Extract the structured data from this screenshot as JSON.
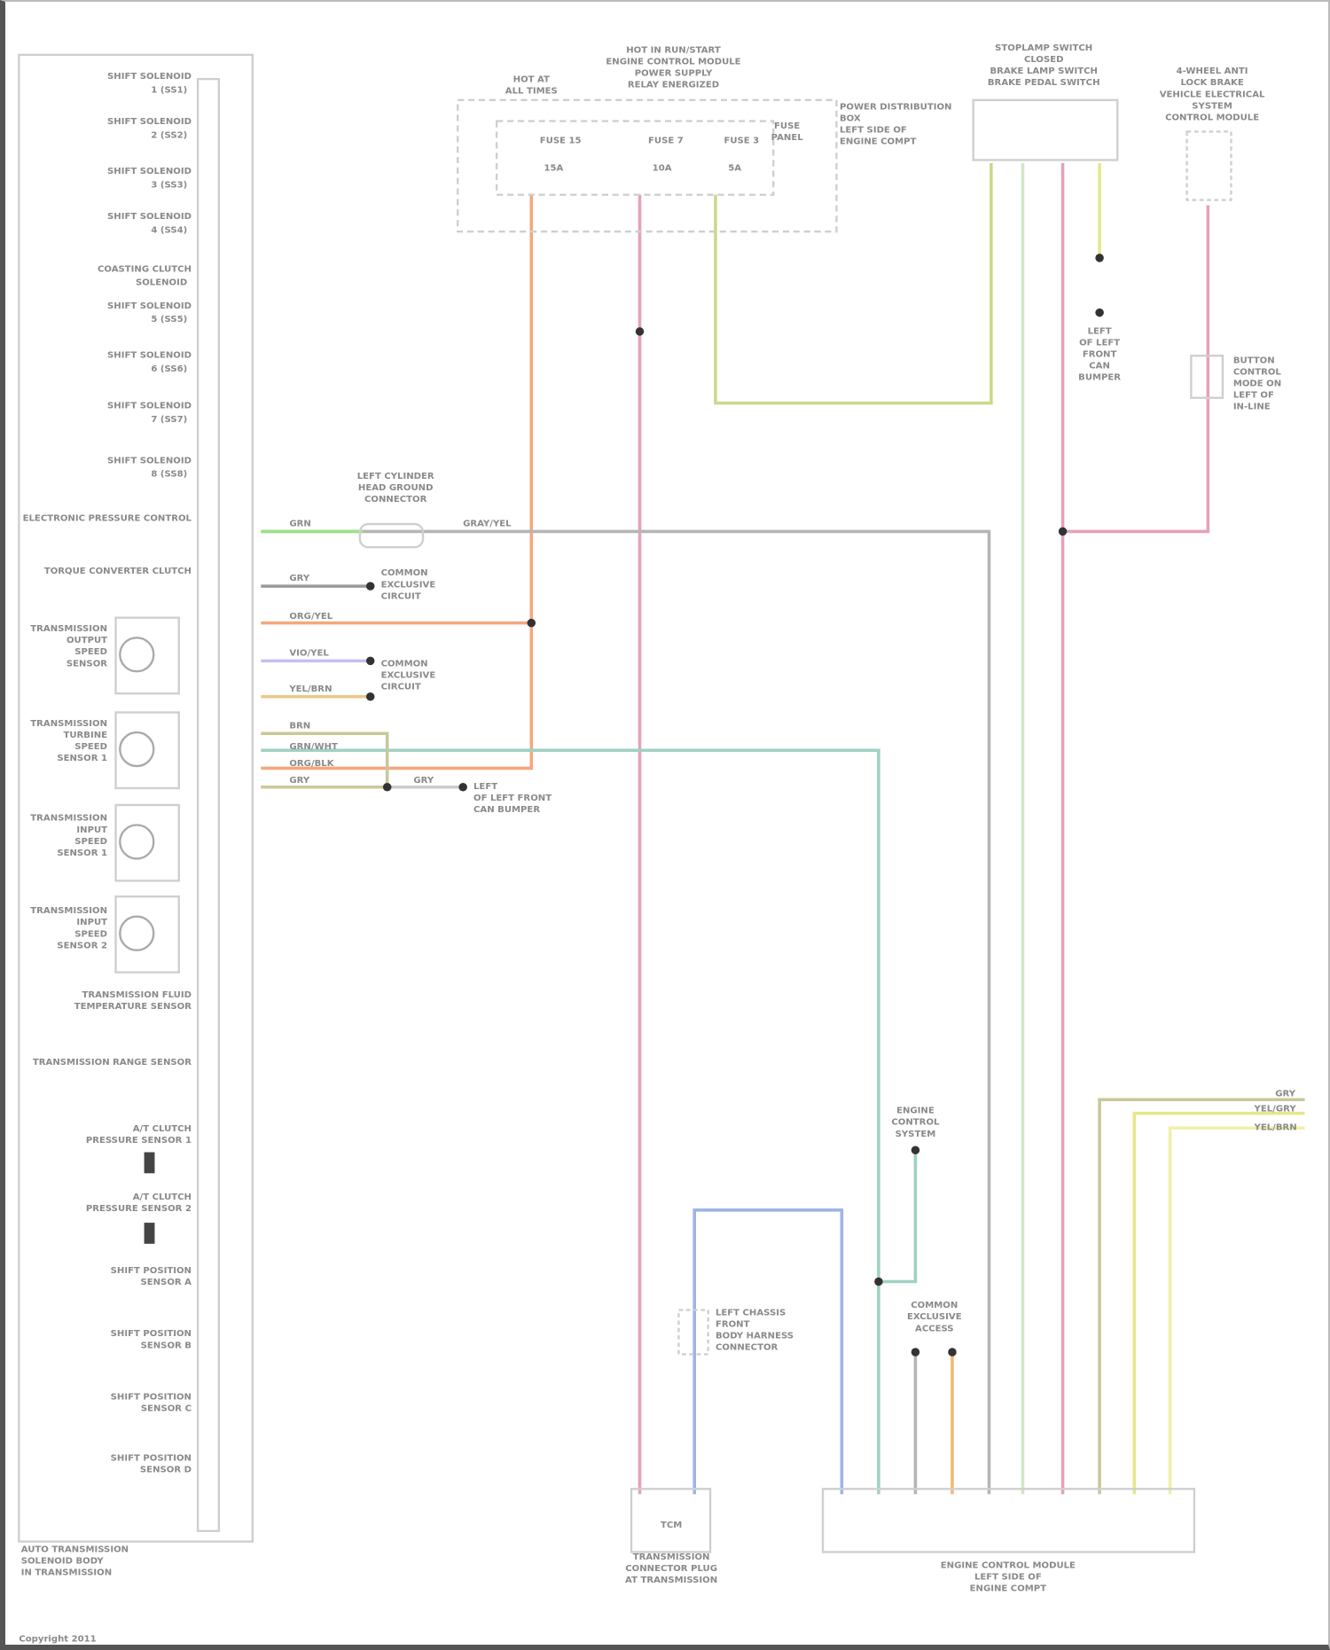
{
  "diagram": {
    "wire_colors": {
      "orange": "#f4a77c",
      "pink": "#e8a0b8",
      "yellow_green": "#c9d98a",
      "gray": "#b5b5b5",
      "light_green": "#cfe8c6",
      "yellow": "#e6e88a",
      "light_yellow": "#f0f0a8",
      "teal": "#9fd0c4",
      "blue": "#9db4e6",
      "olive": "#c8c89a",
      "green": "#9ee08a",
      "violet": "#c4c0f0"
    },
    "left_module": {
      "title": [
        "AUTO TRANSMISSION",
        "SOLENOID BODY",
        "IN TRANSMISSION"
      ],
      "components": [
        {
          "name": "SHIFT SOLENOID",
          "sub": "1 (SS1)"
        },
        {
          "name": "SHIFT SOLENOID",
          "sub": "2 (SS2)"
        },
        {
          "name": "SHIFT SOLENOID",
          "sub": "3 (SS3)"
        },
        {
          "name": "SHIFT SOLENOID",
          "sub": "4 (SS4)"
        },
        {
          "name": "COASTING CLUTCH",
          "sub": "SOLENOID"
        },
        {
          "name": "SHIFT SOLENOID",
          "sub": "5 (SS5)"
        },
        {
          "name": "SHIFT SOLENOID",
          "sub": "6 (SS6)"
        },
        {
          "name": "SHIFT SOLENOID",
          "sub": "7 (SS7)"
        },
        {
          "name": "SHIFT SOLENOID",
          "sub": "8 (SS8)"
        },
        {
          "name": "ELECTRONIC PRESSURE CONTROL",
          "sub": ""
        },
        {
          "name": "TORQUE CONVERTER CLUTCH",
          "sub": ""
        }
      ],
      "sensors": [
        [
          "TRANSMISSION",
          "OUTPUT",
          "SPEED",
          "SENSOR"
        ],
        [
          "TRANSMISSION",
          "TURBINE",
          "SPEED",
          "SENSOR 1"
        ],
        [
          "TRANSMISSION",
          "INPUT",
          "SPEED",
          "SENSOR 1"
        ],
        [
          "TRANSMISSION",
          "INPUT",
          "SPEED",
          "SENSOR 2"
        ]
      ],
      "lower_components": [
        [
          "TRANSMISSION FLUID",
          "TEMPERATURE SENSOR"
        ],
        [
          "TRANSMISSION RANGE SENSOR"
        ],
        [
          "A/T CLUTCH",
          "PRESSURE SENSOR 1"
        ],
        [
          "A/T CLUTCH",
          "PRESSURE SENSOR 2"
        ],
        [
          "SHIFT POSITION",
          "SENSOR A"
        ],
        [
          "SHIFT POSITION",
          "SENSOR B"
        ],
        [
          "SHIFT POSITION",
          "SENSOR C"
        ],
        [
          "SHIFT POSITION",
          "SENSOR D"
        ]
      ]
    },
    "fuse_box": {
      "hot_all_times": [
        "HOT AT",
        "ALL TIMES"
      ],
      "hot_run": [
        "HOT IN RUN/START",
        "ENGINE CONTROL MODULE",
        "POWER SUPPLY",
        "RELAY ENERGIZED"
      ],
      "fuses": [
        {
          "name": "FUSE 15",
          "rating": "15A"
        },
        {
          "name": "FUSE 7",
          "rating": "10A"
        },
        {
          "name": "FUSE 3",
          "rating": "5A"
        }
      ],
      "fuse_panel": [
        "FUSE",
        "PANEL"
      ],
      "location": [
        "POWER DISTRIBUTION",
        "BOX",
        "LEFT SIDE OF",
        "ENGINE COMPT"
      ]
    },
    "stoplamp_switch": [
      "STOPLAMP SWITCH",
      "CLOSED",
      "BRAKE LAMP SWITCH",
      "BRAKE PEDAL SWITCH"
    ],
    "right_ground_module": [
      "4-WHEEL ANTI",
      "LOCK BRAKE",
      "VEHICLE ELECTRICAL",
      "SYSTEM",
      "CONTROL MODULE"
    ],
    "right_splice": [
      "BUTTON",
      "CONTROL",
      "MODE ON",
      "LEFT OF",
      "IN-LINE"
    ],
    "left_ground": [
      "LEFT",
      "OF LEFT",
      "FRONT",
      "CAN",
      "BUMPER"
    ],
    "splice_left": [
      "LEFT CYLINDER",
      "HEAD GROUND",
      "CONNECTOR"
    ],
    "common_1": [
      "COMMON",
      "EXCLUSIVE",
      "CIRCUIT"
    ],
    "common_2": [
      "COMMON",
      "EXCLUSIVE",
      "CIRCUIT"
    ],
    "ground_note": [
      "LEFT",
      "OF LEFT FRONT",
      "CAN BUMPER"
    ],
    "engine_control": [
      "ENGINE",
      "CONTROL",
      "SYSTEM"
    ],
    "left_splice_lower": [
      "LEFT CHASSIS",
      "FRONT",
      "BODY HARNESS",
      "CONNECTOR"
    ],
    "common_3": [
      "COMMON",
      "EXCLUSIVE",
      "ACCESS"
    ],
    "ecm": [
      "ENGINE CONTROL MODULE",
      "LEFT SIDE OF",
      "ENGINE COMPT"
    ],
    "trans_connector": {
      "pin": "TCM",
      "label": [
        "TRANSMISSION",
        "CONNECTOR PLUG",
        "AT TRANSMISSION"
      ]
    },
    "wire_labels": {
      "green": "GRN",
      "splice_out": "GRAY/YEL",
      "gray": "GRY",
      "orange": "ORG/YEL",
      "violet": "VIO/YEL",
      "yel": "YEL/BRN",
      "brn": "BRN",
      "teal": "GRN/WHT",
      "org2": "ORG/BLK",
      "olv": "GRY",
      "gnd": "GRY",
      "r1": "GRY",
      "r2": "YEL/GRY",
      "r3": "YEL/BRN"
    },
    "footer": "Copyright 2011"
  }
}
